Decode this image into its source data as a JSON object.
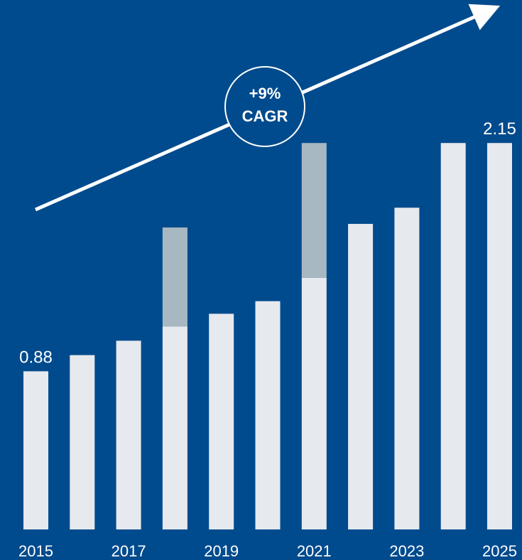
{
  "chart_data": {
    "type": "bar",
    "stacked": true,
    "categories": [
      "2015",
      "2016",
      "2017",
      "2018",
      "2019",
      "2020",
      "2021",
      "2022",
      "2023",
      "2024",
      "2025"
    ],
    "series": [
      {
        "values": [
          0.88,
          0.97,
          1.05,
          1.13,
          1.2,
          1.27,
          1.4,
          1.7,
          1.79,
          2.15,
          2.15
        ]
      },
      {
        "values": [
          0,
          0,
          0,
          0.55,
          0,
          0,
          0.75,
          0,
          0,
          0,
          0
        ]
      }
    ],
    "tick_labels": [
      "2015",
      "2017",
      "2019",
      "2021",
      "2023",
      "2025"
    ],
    "data_labels": [
      {
        "category": "2015",
        "text": "0.88"
      },
      {
        "category": "2025",
        "text": "2.15"
      }
    ],
    "annotation": {
      "line1": "+9%",
      "line2": "CAGR"
    },
    "ylim": [
      0,
      2.4
    ],
    "grid": false,
    "colors": {
      "background": "#004b8d",
      "base": "#e6e9ee",
      "extra": "#a8b8c3",
      "text": "#ffffff"
    }
  }
}
